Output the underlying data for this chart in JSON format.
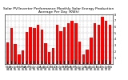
{
  "title": "Solar PV/Inverter Performance Monthly Solar Energy Production Average Per Day (KWh)",
  "bar_groups": [
    {
      "month": "Nov\n04",
      "red": 3.5,
      "dark": 0.4
    },
    {
      "month": "Dec\n04",
      "red": 5.8,
      "dark": 0.5
    },
    {
      "month": "Jan\n05",
      "red": 3.2,
      "dark": 0.4
    },
    {
      "month": "Feb\n05",
      "red": 1.5,
      "dark": 0.3
    },
    {
      "month": "Mar\n05",
      "red": 2.2,
      "dark": 0.3
    },
    {
      "month": "Apr\n05",
      "red": 5.2,
      "dark": 0.5
    },
    {
      "month": "May\n05",
      "red": 6.0,
      "dark": 0.5
    },
    {
      "month": "Jun\n05",
      "red": 5.8,
      "dark": 0.5
    },
    {
      "month": "Jul\n05",
      "red": 6.3,
      "dark": 0.5
    },
    {
      "month": "Aug\n05",
      "red": 5.6,
      "dark": 0.5
    },
    {
      "month": "Sep\n05",
      "red": 3.4,
      "dark": 0.4
    },
    {
      "month": "Oct\n05",
      "red": 2.0,
      "dark": 0.3
    },
    {
      "month": "Nov\n05",
      "red": 2.6,
      "dark": 0.3
    },
    {
      "month": "Dec\n05",
      "red": 6.3,
      "dark": 0.5
    },
    {
      "month": "Jan\n06",
      "red": 5.3,
      "dark": 0.5
    },
    {
      "month": "Feb\n06",
      "red": 6.0,
      "dark": 0.5
    },
    {
      "month": "Mar\n06",
      "red": 6.6,
      "dark": 0.5
    },
    {
      "month": "Apr\n06",
      "red": 7.0,
      "dark": 0.6
    },
    {
      "month": "May\n06",
      "red": 6.6,
      "dark": 0.6
    },
    {
      "month": "Jun\n06",
      "red": 3.6,
      "dark": 0.4
    },
    {
      "month": "Jul\n06",
      "red": 1.6,
      "dark": 0.3
    },
    {
      "month": "Aug\n06",
      "red": 2.3,
      "dark": 0.3
    },
    {
      "month": "Sep\n06",
      "red": 4.3,
      "dark": 0.4
    },
    {
      "month": "Oct\n06",
      "red": 6.6,
      "dark": 0.5
    },
    {
      "month": "Nov\n06",
      "red": 6.3,
      "dark": 0.5
    },
    {
      "month": "Dec\n06",
      "red": 7.6,
      "dark": 0.6
    },
    {
      "month": "Jan\n07",
      "red": 7.0,
      "dark": 0.6
    },
    {
      "month": "Feb\n07",
      "red": 6.3,
      "dark": 0.5
    }
  ],
  "red_color": "#ff0000",
  "dark_color": "#111111",
  "bg_color": "#ffffff",
  "grid_color": "#aaaaaa",
  "ylim": [
    0,
    8
  ],
  "yticks": [
    1,
    2,
    3,
    4,
    5,
    6,
    7,
    8
  ],
  "title_fontsize": 3.2,
  "tick_fontsize": 2.5
}
